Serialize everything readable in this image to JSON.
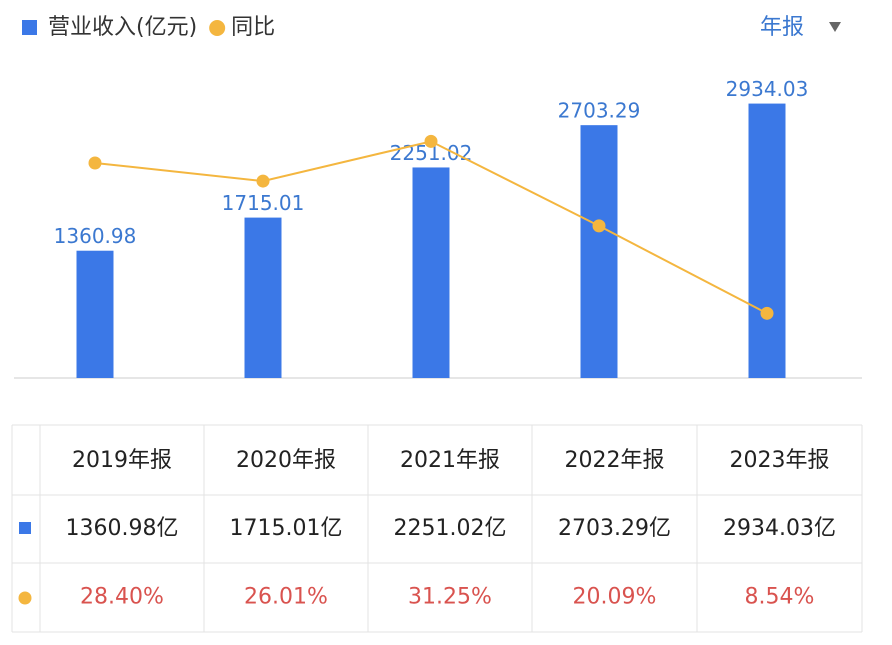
{
  "chart_data": {
    "type": "bar-line",
    "period_selector": "年报",
    "categories": [
      "2019年报",
      "2020年报",
      "2021年报",
      "2022年报",
      "2023年报"
    ],
    "series": [
      {
        "name": "营业收入(亿元)",
        "type": "bar",
        "color": "#3b78e7",
        "values": [
          1360.98,
          1715.01,
          2251.02,
          2703.29,
          2934.03
        ]
      },
      {
        "name": "同比",
        "type": "line",
        "color": "#f4b63f",
        "axis": "y2",
        "values": [
          28.4,
          26.01,
          31.25,
          20.09,
          8.54
        ]
      }
    ],
    "ylim": [
      0,
      3400
    ],
    "y2lim": [
      0,
      42
    ]
  },
  "table": {
    "rows": [
      [
        "1360.98亿",
        "1715.01亿",
        "2251.02亿",
        "2703.29亿",
        "2934.03亿"
      ],
      [
        "28.40%",
        "26.01%",
        "31.25%",
        "20.09%",
        "8.54%"
      ]
    ]
  }
}
